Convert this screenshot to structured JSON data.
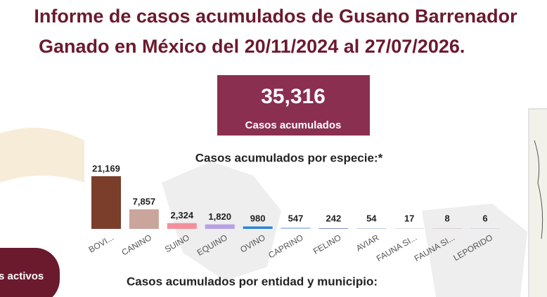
{
  "header": {
    "title_line1": "Informe de casos acumulados de Gusano Barrenador",
    "title_line2": "Ganado en México del 20/11/2024 al 27/07/2026."
  },
  "kpi": {
    "value": "35,316",
    "label": "Casos acumulados"
  },
  "side_button": {
    "label": "s activos"
  },
  "section_title": "Casos acumulados por entidad y municipio:",
  "chart_data": {
    "type": "bar",
    "title": "Casos acumulados por especie:*",
    "categories": [
      "BOVI...",
      "CANINO",
      "SUINO",
      "EQUINO",
      "OVINO",
      "CAPRINO",
      "FELINO",
      "AVIAR",
      "FAUNA SI...",
      "FAUNA SI...",
      "LEPORIDO"
    ],
    "values": [
      21169,
      7857,
      2324,
      1820,
      980,
      547,
      242,
      54,
      17,
      8,
      6
    ],
    "value_labels": [
      "21,169",
      "7,857",
      "2,324",
      "1,820",
      "980",
      "547",
      "242",
      "54",
      "17",
      "8",
      "6"
    ],
    "colors": [
      "#7a3e2b",
      "#c9a59c",
      "#f2919b",
      "#b8a2e3",
      "#2b84d8",
      "#a9c6ee",
      "#6b7bc8",
      "#9aa8d8",
      "#c8c8d8",
      "#d0c0d0",
      "#c8d0e0"
    ]
  }
}
